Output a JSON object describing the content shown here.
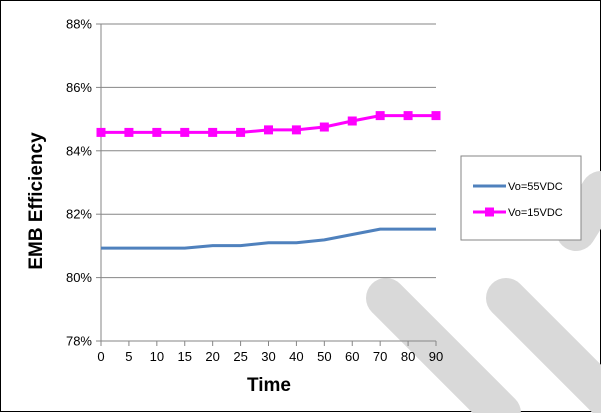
{
  "chart_data": {
    "type": "line",
    "title": "",
    "xlabel": "Time",
    "ylabel": "EMB Efficiency",
    "categories": [
      "0",
      "5",
      "10",
      "15",
      "20",
      "25",
      "30",
      "40",
      "50",
      "60",
      "70",
      "80",
      "90"
    ],
    "ylim": [
      0.78,
      0.88
    ],
    "yticks": [
      "78%",
      "80%",
      "82%",
      "84%",
      "86%",
      "88%"
    ],
    "grid": "horizontal",
    "legend_position": "right",
    "series": [
      {
        "name": "Vo=55VDC",
        "color": "#4F81BD",
        "marker": "none",
        "values": [
          0.8093,
          0.8093,
          0.8093,
          0.8093,
          0.8101,
          0.8101,
          0.811,
          0.811,
          0.8119,
          0.8136,
          0.8153,
          0.8153,
          0.8153
        ]
      },
      {
        "name": "Vo=15VDC",
        "color": "#FF00FF",
        "marker": "square",
        "values": [
          0.8458,
          0.8458,
          0.8458,
          0.8458,
          0.8458,
          0.8458,
          0.8466,
          0.8466,
          0.8475,
          0.8494,
          0.8511,
          0.8511,
          0.8511
        ]
      }
    ]
  },
  "watermark": {
    "color": "#d9d9d9"
  }
}
